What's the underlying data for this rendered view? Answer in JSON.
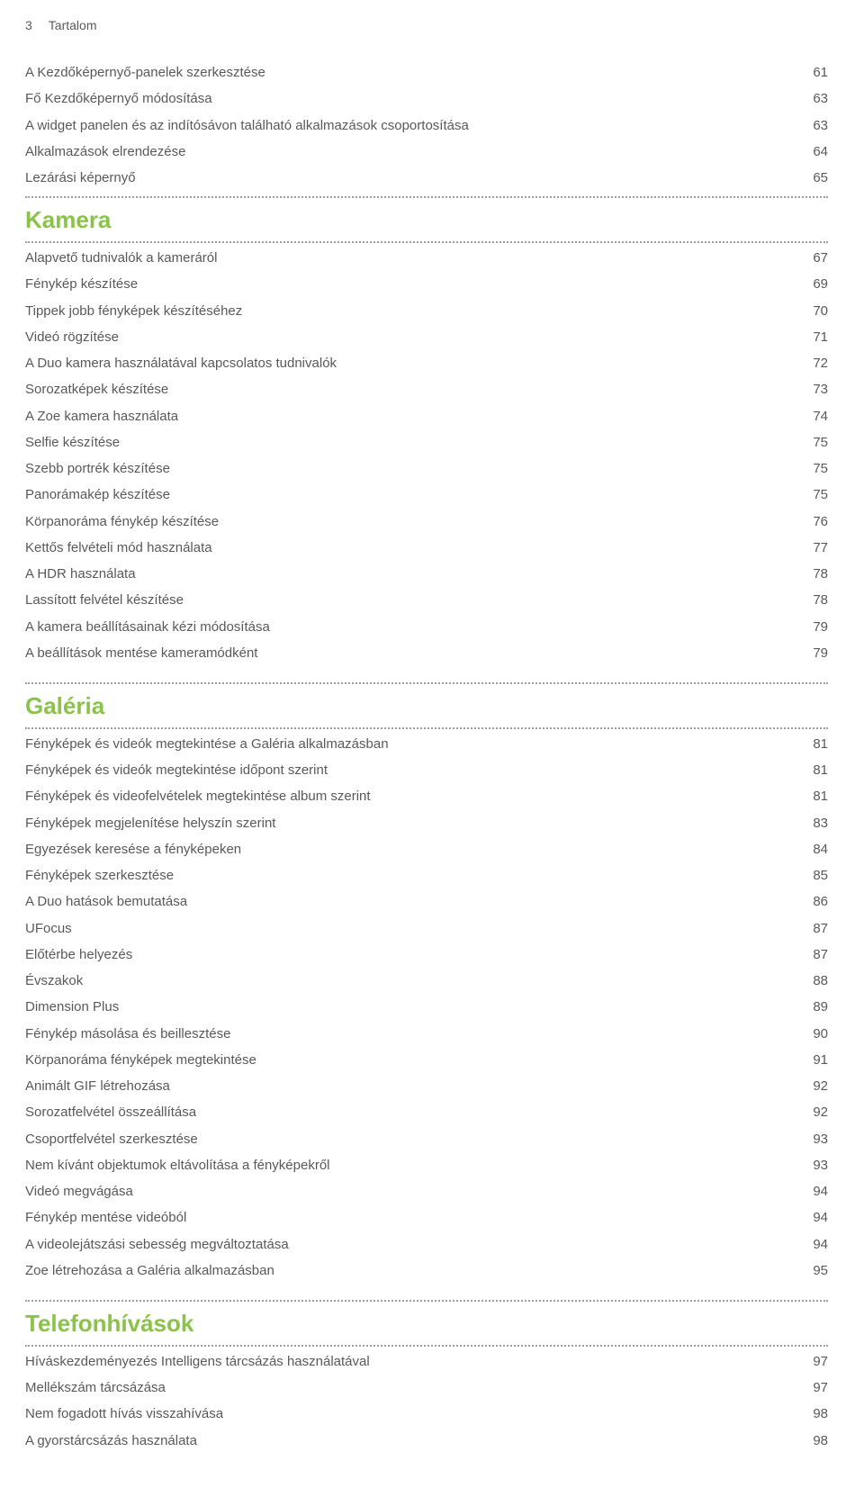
{
  "header": {
    "page_number": "3",
    "title": "Tartalom"
  },
  "top_items": [
    {
      "label": "A Kezdőképernyő-panelek szerkesztése",
      "page": "61"
    },
    {
      "label": "Fő Kezdőképernyő módosítása",
      "page": "63"
    },
    {
      "label": "A widget panelen és az indítósávon található alkalmazások csoportosítása",
      "page": "63"
    },
    {
      "label": "Alkalmazások elrendezése",
      "page": "64"
    },
    {
      "label": "Lezárási képernyő",
      "page": "65"
    }
  ],
  "sections": [
    {
      "title": "Kamera",
      "items": [
        {
          "label": "Alapvető tudnivalók a kameráról",
          "page": "67"
        },
        {
          "label": "Fénykép készítése",
          "page": "69"
        },
        {
          "label": "Tippek jobb fényképek készítéséhez",
          "page": "70"
        },
        {
          "label": "Videó rögzítése",
          "page": "71"
        },
        {
          "label": "A Duo kamera használatával kapcsolatos tudnivalók",
          "page": "72"
        },
        {
          "label": "Sorozatképek készítése",
          "page": "73"
        },
        {
          "label": "A Zoe kamera használata",
          "page": "74"
        },
        {
          "label": "Selfie készítése",
          "page": "75"
        },
        {
          "label": "Szebb portrék készítése",
          "page": "75"
        },
        {
          "label": "Panorámakép készítése",
          "page": "75"
        },
        {
          "label": "Körpanoráma fénykép készítése",
          "page": "76"
        },
        {
          "label": "Kettős felvételi mód használata",
          "page": "77"
        },
        {
          "label": "A HDR használata",
          "page": "78"
        },
        {
          "label": "Lassított felvétel készítése",
          "page": "78"
        },
        {
          "label": "A kamera beállításainak kézi módosítása",
          "page": "79"
        },
        {
          "label": "A beállítások mentése kameramódként",
          "page": "79"
        }
      ]
    },
    {
      "title": "Galéria",
      "items": [
        {
          "label": "Fényképek és videók megtekintése a Galéria alkalmazásban",
          "page": "81"
        },
        {
          "label": "Fényképek és videók megtekintése időpont szerint",
          "page": "81"
        },
        {
          "label": "Fényképek és videofelvételek megtekintése album szerint",
          "page": "81"
        },
        {
          "label": "Fényképek megjelenítése helyszín szerint",
          "page": "83"
        },
        {
          "label": "Egyezések keresése a fényképeken",
          "page": "84"
        },
        {
          "label": "Fényképek szerkesztése",
          "page": "85"
        },
        {
          "label": "A Duo hatások bemutatása",
          "page": "86"
        },
        {
          "label": "UFocus",
          "page": "87"
        },
        {
          "label": "Előtérbe helyezés",
          "page": "87"
        },
        {
          "label": "Évszakok",
          "page": "88"
        },
        {
          "label": "Dimension Plus",
          "page": "89"
        },
        {
          "label": "Fénykép másolása és beillesztése",
          "page": "90"
        },
        {
          "label": "Körpanoráma fényképek megtekintése",
          "page": "91"
        },
        {
          "label": "Animált GIF létrehozása",
          "page": "92"
        },
        {
          "label": "Sorozatfelvétel összeállítása",
          "page": "92"
        },
        {
          "label": "Csoportfelvétel szerkesztése",
          "page": "93"
        },
        {
          "label": "Nem kívánt objektumok eltávolítása a fényképekről",
          "page": "93"
        },
        {
          "label": "Videó megvágása",
          "page": "94"
        },
        {
          "label": "Fénykép mentése videóból",
          "page": "94"
        },
        {
          "label": "A videolejátszási sebesség megváltoztatása",
          "page": "94"
        },
        {
          "label": "Zoe létrehozása a Galéria alkalmazásban",
          "page": "95"
        }
      ]
    },
    {
      "title": "Telefonhívások",
      "items": [
        {
          "label": "Híváskezdeményezés Intelligens tárcsázás használatával",
          "page": "97"
        },
        {
          "label": "Mellékszám tárcsázása",
          "page": "97"
        },
        {
          "label": "Nem fogadott hívás visszahívása",
          "page": "98"
        },
        {
          "label": "A gyorstárcsázás használata",
          "page": "98"
        }
      ]
    }
  ]
}
